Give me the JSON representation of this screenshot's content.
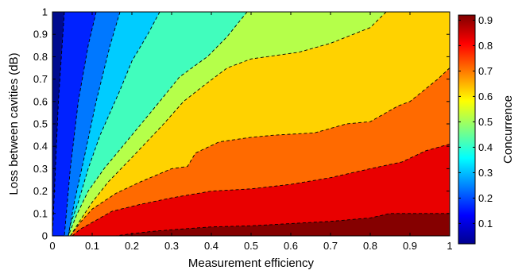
{
  "chart_data": {
    "type": "contour",
    "xlabel": "Measurement efficiency",
    "ylabel": "Loss between cavities (dB)",
    "xlim": [
      0,
      1
    ],
    "ylim": [
      0,
      1
    ],
    "xticks": [
      "0",
      "0.1",
      "0.2",
      "0.3",
      "0.4",
      "0.5",
      "0.6",
      "0.7",
      "0.8",
      "0.9",
      "1"
    ],
    "yticks": [
      "0",
      "0.1",
      "0.2",
      "0.3",
      "0.4",
      "0.5",
      "0.6",
      "0.7",
      "0.8",
      "0.9",
      "1"
    ],
    "colorbar": {
      "label": "Concurrence",
      "ticks": [
        "0.1",
        "0.2",
        "0.3",
        "0.4",
        "0.5",
        "0.6",
        "0.7",
        "0.8",
        "0.9"
      ],
      "range": [
        0.02,
        0.92
      ],
      "colormap": "jet"
    },
    "contour_lines": "dashed black",
    "regions": [
      {
        "level": 0.05,
        "color": "#000b8f"
      },
      {
        "level": 0.15,
        "color": "#0022ff"
      },
      {
        "level": 0.25,
        "color": "#0078ff"
      },
      {
        "level": 0.35,
        "color": "#00ccff"
      },
      {
        "level": 0.45,
        "color": "#41fdbd"
      },
      {
        "level": 0.55,
        "color": "#b5ff4a"
      },
      {
        "level": 0.65,
        "color": "#ffd200"
      },
      {
        "level": 0.75,
        "color": "#ff6a00"
      },
      {
        "level": 0.85,
        "color": "#e90000"
      },
      {
        "level": 0.92,
        "color": "#850000"
      }
    ],
    "boundaries": [
      {
        "lower": 0.1,
        "points": [
          [
            0.03,
            1
          ],
          [
            0.015,
            0.6
          ],
          [
            0.0,
            0.0
          ]
        ]
      },
      {
        "lower": 0.2,
        "points": [
          [
            0.11,
            1
          ],
          [
            0.09,
            0.85
          ],
          [
            0.065,
            0.6
          ],
          [
            0.045,
            0.3
          ],
          [
            0.035,
            0.1
          ],
          [
            0.03,
            0.0
          ]
        ]
      },
      {
        "lower": 0.3,
        "points": [
          [
            0.17,
            1
          ],
          [
            0.145,
            0.85
          ],
          [
            0.11,
            0.6
          ],
          [
            0.08,
            0.35
          ],
          [
            0.055,
            0.15
          ],
          [
            0.04,
            0.0
          ]
        ]
      },
      {
        "lower": 0.4,
        "points": [
          [
            0.27,
            1
          ],
          [
            0.24,
            0.9
          ],
          [
            0.2,
            0.78
          ],
          [
            0.17,
            0.65
          ],
          [
            0.12,
            0.45
          ],
          [
            0.09,
            0.3
          ],
          [
            0.065,
            0.15
          ],
          [
            0.045,
            0.05
          ],
          [
            0.04,
            0.0
          ]
        ]
      },
      {
        "lower": 0.5,
        "points": [
          [
            0.49,
            1
          ],
          [
            0.44,
            0.89
          ],
          [
            0.39,
            0.8
          ],
          [
            0.32,
            0.71
          ],
          [
            0.27,
            0.6
          ],
          [
            0.2,
            0.45
          ],
          [
            0.13,
            0.3
          ],
          [
            0.09,
            0.2
          ],
          [
            0.06,
            0.09
          ],
          [
            0.04,
            0.0
          ]
        ]
      },
      {
        "lower": 0.6,
        "points": [
          [
            0.84,
            1
          ],
          [
            0.8,
            0.93
          ],
          [
            0.7,
            0.86
          ],
          [
            0.62,
            0.82
          ],
          [
            0.54,
            0.8
          ],
          [
            0.5,
            0.79
          ],
          [
            0.44,
            0.75
          ],
          [
            0.38,
            0.67
          ],
          [
            0.33,
            0.6
          ],
          [
            0.28,
            0.5
          ],
          [
            0.2,
            0.35
          ],
          [
            0.14,
            0.24
          ],
          [
            0.1,
            0.15
          ],
          [
            0.07,
            0.07
          ],
          [
            0.045,
            0.0
          ]
        ]
      },
      {
        "lower": 0.7,
        "points": [
          [
            1,
            0.75
          ],
          [
            0.97,
            0.7
          ],
          [
            0.9,
            0.6
          ],
          [
            0.87,
            0.58
          ],
          [
            0.8,
            0.51
          ],
          [
            0.74,
            0.5
          ],
          [
            0.66,
            0.46
          ],
          [
            0.56,
            0.45
          ],
          [
            0.5,
            0.44
          ],
          [
            0.42,
            0.42
          ],
          [
            0.36,
            0.37
          ],
          [
            0.34,
            0.31
          ],
          [
            0.3,
            0.3
          ],
          [
            0.22,
            0.24
          ],
          [
            0.16,
            0.19
          ],
          [
            0.1,
            0.12
          ],
          [
            0.07,
            0.06
          ],
          [
            0.045,
            0.0
          ]
        ]
      },
      {
        "lower": 0.8,
        "points": [
          [
            1,
            0.41
          ],
          [
            0.94,
            0.38
          ],
          [
            0.88,
            0.33
          ],
          [
            0.8,
            0.3
          ],
          [
            0.7,
            0.26
          ],
          [
            0.6,
            0.23
          ],
          [
            0.5,
            0.21
          ],
          [
            0.4,
            0.2
          ],
          [
            0.3,
            0.17
          ],
          [
            0.22,
            0.14
          ],
          [
            0.15,
            0.11
          ],
          [
            0.1,
            0.06
          ],
          [
            0.07,
            0.03
          ],
          [
            0.05,
            0.0
          ]
        ]
      },
      {
        "lower": 0.9,
        "points": [
          [
            1,
            0.1
          ],
          [
            0.85,
            0.1
          ],
          [
            0.8,
            0.08
          ],
          [
            0.7,
            0.065
          ],
          [
            0.6,
            0.055
          ],
          [
            0.5,
            0.045
          ],
          [
            0.4,
            0.04
          ],
          [
            0.32,
            0.03
          ],
          [
            0.25,
            0.02
          ],
          [
            0.2,
            0.01
          ],
          [
            0.16,
            0.0
          ]
        ]
      }
    ]
  }
}
